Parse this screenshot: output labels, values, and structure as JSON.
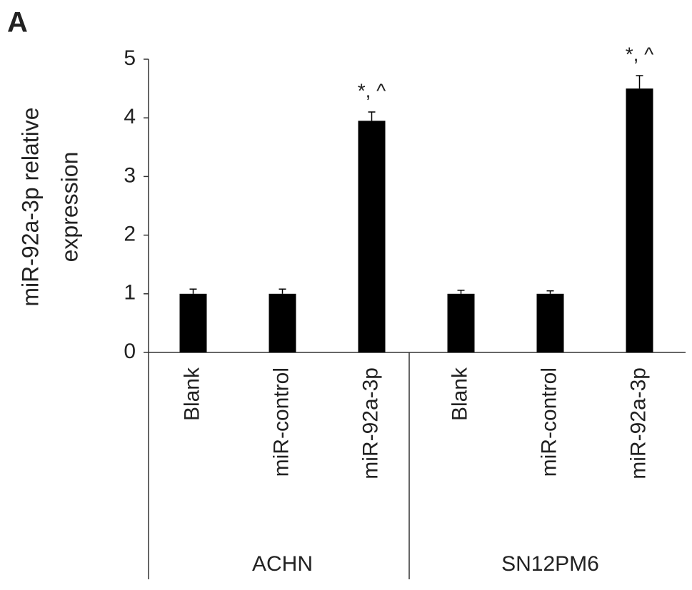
{
  "chart_data": {
    "type": "bar",
    "panel_label": "A",
    "y_label": [
      "miR-92a-3p relative",
      "expression"
    ],
    "groups": [
      {
        "label": "ACHN",
        "categories": [
          "Blank",
          "miR-control",
          "miR-92a-3p"
        ],
        "values": [
          1.0,
          1.0,
          3.95
        ],
        "errors": [
          0.08,
          0.08,
          0.15
        ],
        "annotations": [
          null,
          null,
          "*, ^"
        ]
      },
      {
        "label": "SN12PM6",
        "categories": [
          "Blank",
          "miR-control",
          "miR-92a-3p"
        ],
        "values": [
          1.0,
          1.0,
          4.5
        ],
        "errors": [
          0.06,
          0.05,
          0.22
        ],
        "annotations": [
          null,
          null,
          "*, ^"
        ]
      }
    ],
    "color": "#000000",
    "ylim": [
      0,
      5
    ],
    "yticks": [
      0,
      1,
      2,
      3,
      4,
      5
    ]
  }
}
